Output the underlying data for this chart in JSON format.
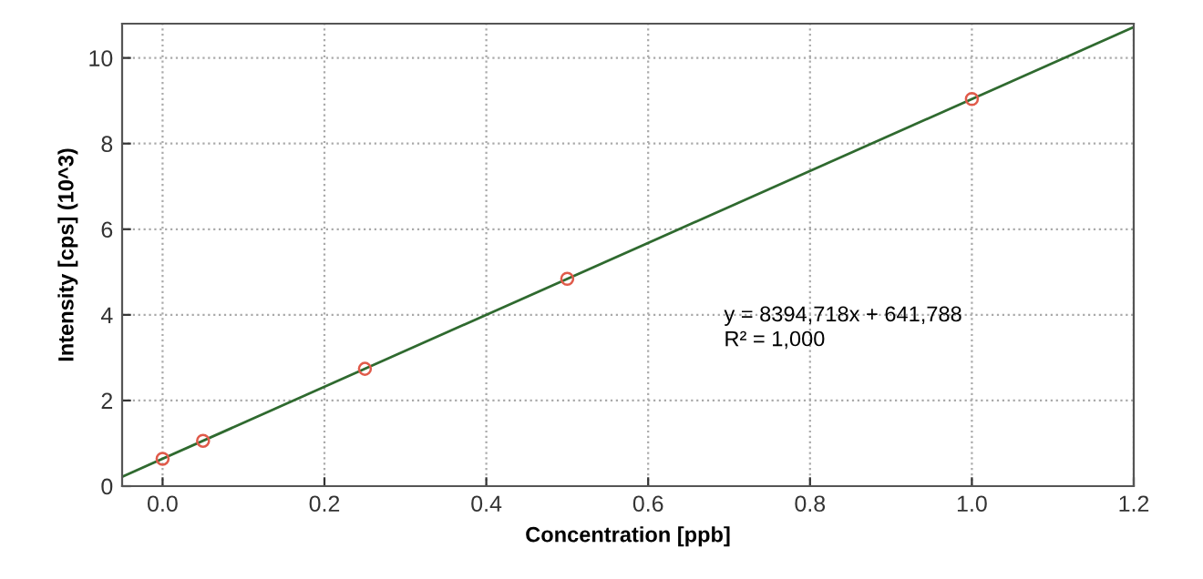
{
  "chart_data": {
    "type": "scatter",
    "xlabel": "Concentration [ppb]",
    "ylabel": "Intensity [cps] (10^3)",
    "xlim": [
      -0.05,
      1.2
    ],
    "ylim": [
      0,
      10.8
    ],
    "xticks": [
      {
        "value": 0,
        "label": "0.0"
      },
      0.2,
      0.4,
      0.6,
      0.8,
      {
        "value": 1,
        "label": "1.0"
      },
      1.2
    ],
    "yticks": [
      0,
      2,
      4,
      6,
      8,
      10
    ],
    "grid": true,
    "legend": false,
    "series": [
      {
        "type": "scatter",
        "marker": "circle",
        "color": "#e05a4a",
        "x": [
          0,
          0.05,
          0.25,
          0.5,
          1.0
        ],
        "values": [
          0.64,
          1.06,
          2.74,
          4.84,
          9.04
        ]
      },
      {
        "type": "line",
        "color": "#2f6a2f",
        "x": [
          -0.05,
          1.2
        ],
        "values": [
          0.22,
          10.72
        ]
      }
    ],
    "annotations": [
      "y = 8394,718x + 641,788\nR² = 1,000"
    ]
  }
}
